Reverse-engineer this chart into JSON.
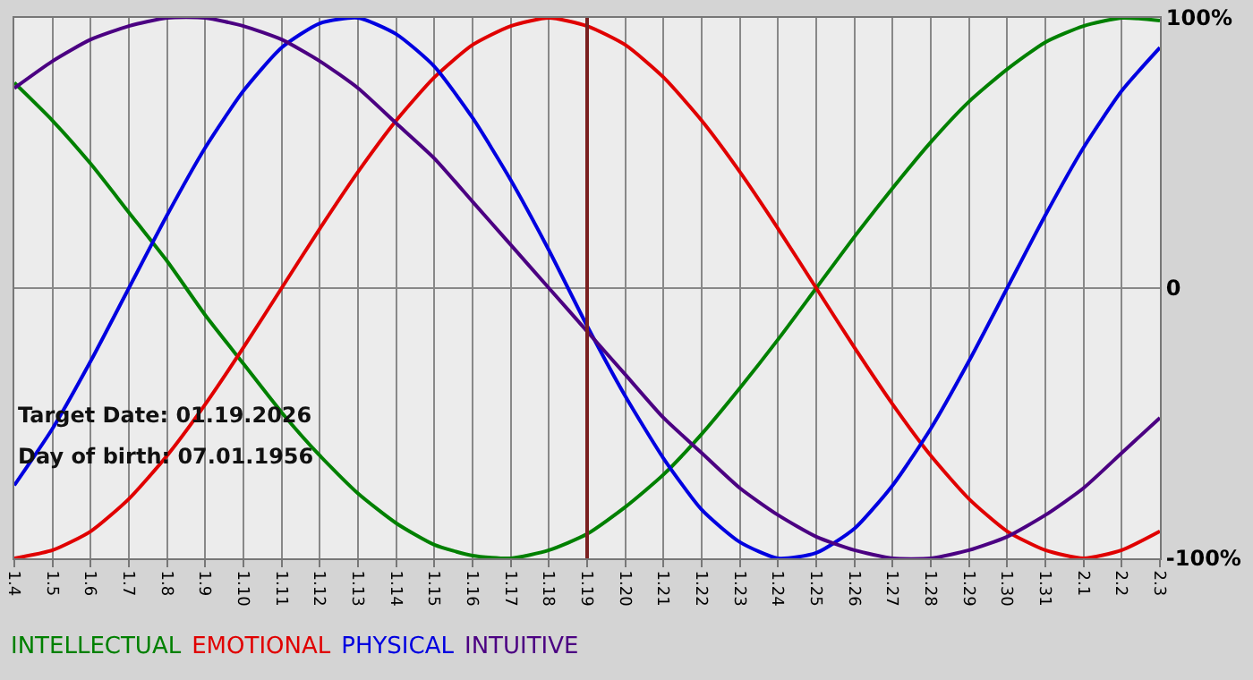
{
  "chart_data": {
    "type": "line",
    "categories": [
      "1.4",
      "1.5",
      "1.6",
      "1.7",
      "1.8",
      "1.9",
      "1.10",
      "1.11",
      "1.12",
      "1.13",
      "1.14",
      "1.15",
      "1.16",
      "1.17",
      "1.18",
      "1.19",
      "1.20",
      "1.21",
      "1.22",
      "1.23",
      "1.24",
      "1.25",
      "1.26",
      "1.27",
      "1.28",
      "1.29",
      "1.30",
      "1.31",
      "2.1",
      "2.2",
      "2.3"
    ],
    "series": [
      {
        "name": "INTELLECTUAL",
        "color": "#008000",
        "values": [
          76,
          62,
          46,
          28,
          10,
          -10,
          -28,
          -46,
          -62,
          -76,
          -87,
          -95,
          -99,
          -100,
          -97,
          -91,
          -81,
          -69,
          -54,
          -37,
          -19,
          0,
          19,
          37,
          54,
          69,
          81,
          91,
          97,
          100,
          99
        ]
      },
      {
        "name": "EMOTIONAL",
        "color": "#e00000",
        "values": [
          -100,
          -97,
          -90,
          -78,
          -62,
          -43,
          -22,
          0,
          22,
          43,
          62,
          78,
          90,
          97,
          100,
          97,
          90,
          78,
          62,
          43,
          22,
          0,
          -22,
          -43,
          -62,
          -78,
          -90,
          -97,
          -100,
          -97,
          -90
        ]
      },
      {
        "name": "PHYSICAL",
        "color": "#0000e0",
        "values": [
          -73,
          -52,
          -27,
          0,
          27,
          52,
          73,
          89,
          98,
          100,
          94,
          82,
          63,
          40,
          14,
          -14,
          -40,
          -63,
          -82,
          -94,
          -100,
          -98,
          -89,
          -73,
          -52,
          -27,
          0,
          27,
          52,
          73,
          89
        ]
      },
      {
        "name": "INTUITIVE",
        "color": "#4b0082",
        "values": [
          74,
          84,
          92,
          97,
          100,
          100,
          97,
          92,
          84,
          74,
          61,
          48,
          32,
          16,
          0,
          -16,
          -32,
          -48,
          -61,
          -74,
          -84,
          -92,
          -97,
          -100,
          -100,
          -97,
          -92,
          -84,
          -74,
          -61,
          -48
        ]
      }
    ],
    "ylim": [
      -100,
      100
    ],
    "yticks": [
      {
        "value": 100,
        "label": "100%"
      },
      0,
      {
        "value": -100,
        "label": "-100%"
      }
    ],
    "ref_lines": [
      {
        "axis": "x",
        "value": "1.19",
        "color": "#7a1f1f"
      }
    ],
    "annotations": [
      "Target Date: 01.19.2026",
      "Day of birth: 07.01.1956"
    ],
    "grid": true,
    "legend": "bottom left",
    "marker": "none",
    "line_style": "solid"
  }
}
